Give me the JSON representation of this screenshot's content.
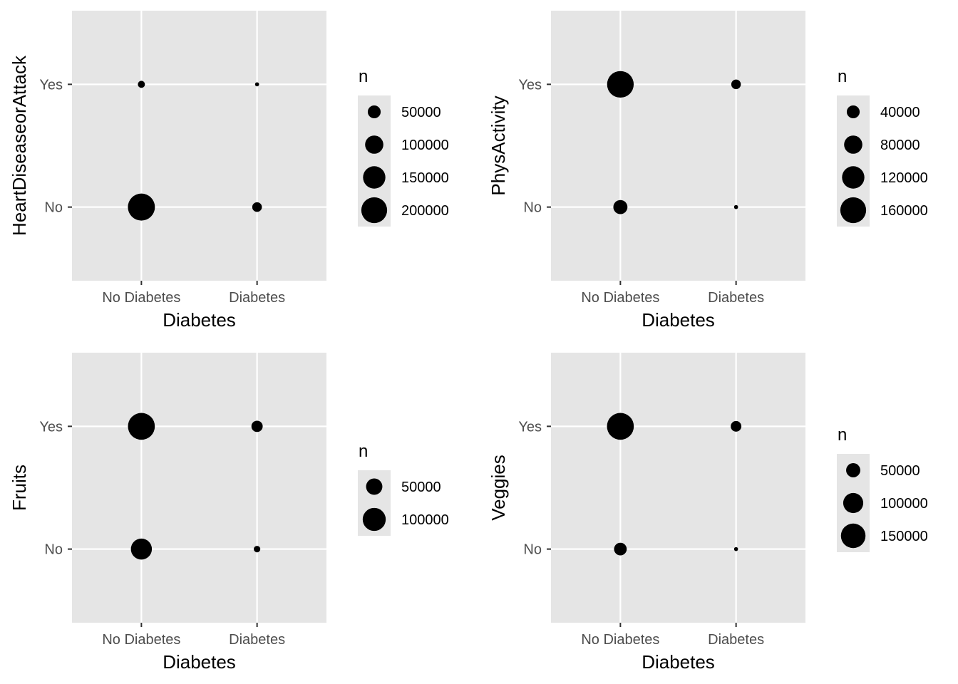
{
  "colors": {
    "panel_background": "#e5e5e5",
    "grid": "#ffffff",
    "point": "#000000",
    "legend_key_background": "#e5e5e5",
    "tick_text": "#4d4d4d"
  },
  "chart_data": [
    {
      "type": "scatter",
      "xlabel": "Diabetes",
      "ylabel": "HeartDiseaseorAttack",
      "categories_x": [
        "No Diabetes",
        "Diabetes"
      ],
      "categories_y": [
        "No",
        "Yes"
      ],
      "size_legend_title": "n",
      "size_legend": [
        50000,
        100000,
        150000,
        200000
      ],
      "size_legend_labels": [
        "50000",
        "100000",
        "150000",
        "200000"
      ],
      "size_max": 220000,
      "points": [
        {
          "x": "No Diabetes",
          "y": "No",
          "n": 219000
        },
        {
          "x": "No Diabetes",
          "y": "Yes",
          "n": 15000
        },
        {
          "x": "Diabetes",
          "y": "No",
          "n": 28000
        },
        {
          "x": "Diabetes",
          "y": "Yes",
          "n": 5000
        }
      ]
    },
    {
      "type": "scatter",
      "xlabel": "Diabetes",
      "ylabel": "PhysActivity",
      "categories_x": [
        "No Diabetes",
        "Diabetes"
      ],
      "categories_y": [
        "No",
        "Yes"
      ],
      "size_legend_title": "n",
      "size_legend": [
        40000,
        80000,
        120000,
        160000
      ],
      "size_legend_labels": [
        "40000",
        "80000",
        "120000",
        "160000"
      ],
      "size_max": 176000,
      "points": [
        {
          "x": "No Diabetes",
          "y": "No",
          "n": 48000
        },
        {
          "x": "No Diabetes",
          "y": "Yes",
          "n": 170000
        },
        {
          "x": "Diabetes",
          "y": "No",
          "n": 4000
        },
        {
          "x": "Diabetes",
          "y": "Yes",
          "n": 22000
        }
      ]
    },
    {
      "type": "scatter",
      "xlabel": "Diabetes",
      "ylabel": "Fruits",
      "categories_x": [
        "No Diabetes",
        "Diabetes"
      ],
      "categories_y": [
        "No",
        "Yes"
      ],
      "size_legend_title": "n",
      "size_legend": [
        50000,
        100000
      ],
      "size_legend_labels": [
        "50000",
        "100000"
      ],
      "size_max": 138000,
      "points": [
        {
          "x": "No Diabetes",
          "y": "No",
          "n": 83000
        },
        {
          "x": "No Diabetes",
          "y": "Yes",
          "n": 136000
        },
        {
          "x": "Diabetes",
          "y": "No",
          "n": 8000
        },
        {
          "x": "Diabetes",
          "y": "Yes",
          "n": 24000
        }
      ]
    },
    {
      "type": "scatter",
      "xlabel": "Diabetes",
      "ylabel": "Veggies",
      "categories_x": [
        "No Diabetes",
        "Diabetes"
      ],
      "categories_y": [
        "No",
        "Yes"
      ],
      "size_legend_title": "n",
      "size_legend": [
        50000,
        100000,
        150000
      ],
      "size_legend_labels": [
        "50000",
        "100000",
        "150000"
      ],
      "size_max": 182000,
      "points": [
        {
          "x": "No Diabetes",
          "y": "No",
          "n": 40000
        },
        {
          "x": "No Diabetes",
          "y": "Yes",
          "n": 179000
        },
        {
          "x": "Diabetes",
          "y": "No",
          "n": 4000
        },
        {
          "x": "Diabetes",
          "y": "Yes",
          "n": 28000
        }
      ]
    }
  ]
}
